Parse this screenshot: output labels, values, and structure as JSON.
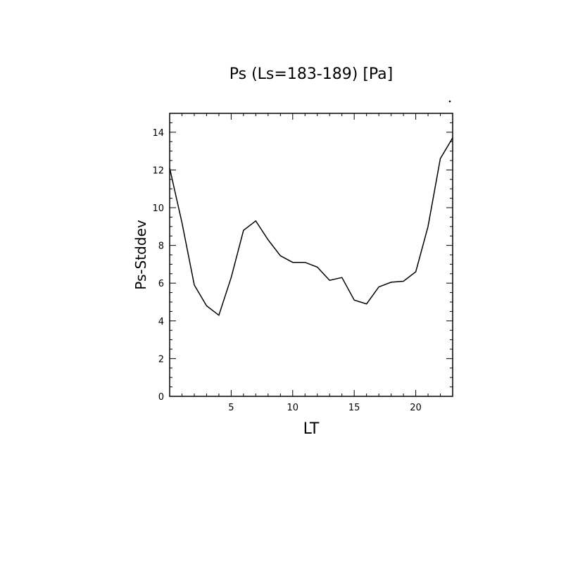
{
  "chart_data": {
    "type": "line",
    "title": "Ps (Ls=183-189) [Pa]",
    "xlabel": "LT",
    "ylabel": "Ps-Stddev",
    "xlim": [
      0,
      23
    ],
    "ylim": [
      0,
      15
    ],
    "xticks": [
      5,
      10,
      15,
      20
    ],
    "yticks": [
      0,
      2,
      4,
      6,
      8,
      10,
      12,
      14
    ],
    "grid": false,
    "series": [
      {
        "x": [
          0,
          1,
          2,
          3,
          4,
          5,
          6,
          7,
          8,
          9,
          10,
          11,
          12,
          13,
          14,
          15,
          16,
          17,
          18,
          19,
          20,
          21,
          22,
          23
        ],
        "values": [
          12.1,
          9.2,
          5.9,
          4.8,
          4.3,
          6.3,
          8.8,
          9.3,
          8.3,
          7.45,
          7.1,
          7.1,
          6.85,
          6.15,
          6.3,
          5.1,
          4.9,
          5.8,
          6.05,
          6.1,
          6.6,
          9.0,
          12.6,
          13.7
        ]
      }
    ]
  }
}
